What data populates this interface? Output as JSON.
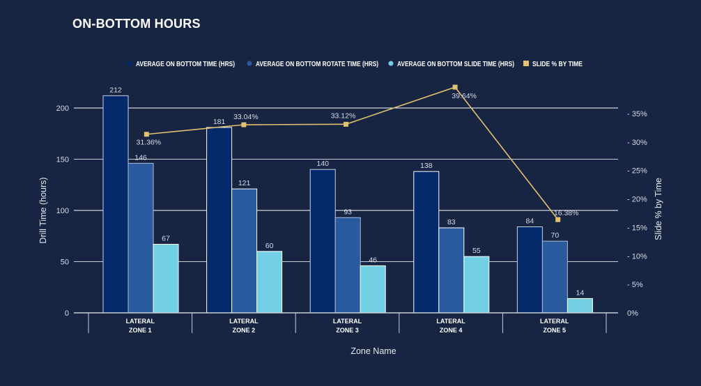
{
  "chart_data": {
    "type": "bar",
    "title": "ON-BOTTOM HOURS",
    "xlabel": "Zone Name",
    "ylabel": "Drill Time (hours)",
    "y2label": "Slide % by Time",
    "categories": [
      [
        "LATERAL",
        "ZONE 1"
      ],
      [
        "LATERAL",
        "ZONE 2"
      ],
      [
        "LATERAL",
        "ZONE 3"
      ],
      [
        "LATERAL",
        "ZONE 4"
      ],
      [
        "LATERAL",
        "ZONE 5"
      ]
    ],
    "ylim": [
      0,
      200
    ],
    "yticks": [
      "0",
      "50",
      "100",
      "150",
      "200"
    ],
    "ytick_values": [
      0,
      50,
      100,
      150,
      200
    ],
    "y2lim": [
      0,
      35
    ],
    "y2ticks": [
      "0%",
      "- 5%",
      "- 10%",
      "- 15%",
      "- 20%",
      "- 25%",
      "- 30%",
      "- 35%"
    ],
    "y2tick_values": [
      0,
      5,
      10,
      15,
      20,
      25,
      30,
      35
    ],
    "grid": true,
    "legend_position": "top",
    "series": [
      {
        "name": "AVERAGE ON BOTTOM TIME (HRS)",
        "type": "bar",
        "color": "#042a6b",
        "values": [
          212,
          181,
          140,
          138,
          84
        ],
        "labels": [
          "212",
          "181",
          "140",
          "138",
          "84"
        ]
      },
      {
        "name": "AVERAGE ON BOTTOM ROTATE TIME (HRS)",
        "type": "bar",
        "color": "#2a5a9e",
        "values": [
          146,
          121,
          93,
          83,
          70
        ],
        "labels": [
          "146",
          "121",
          "93",
          "83",
          "70"
        ]
      },
      {
        "name": "AVERAGE ON BOTTOM SLIDE TIME (HRS)",
        "type": "bar",
        "color": "#72cfe6",
        "values": [
          67,
          60,
          46,
          55,
          14
        ],
        "labels": [
          "67",
          "60",
          "46",
          "55",
          "14"
        ]
      },
      {
        "name": "SLIDE % BY TIME",
        "type": "line",
        "axis": "right",
        "color": "#e2c26e",
        "values": [
          31.36,
          33.04,
          33.12,
          39.64,
          16.38
        ],
        "labels": [
          "31.36%",
          "33.04%",
          "33.12%",
          "39.64%",
          "16.38%"
        ]
      }
    ]
  }
}
